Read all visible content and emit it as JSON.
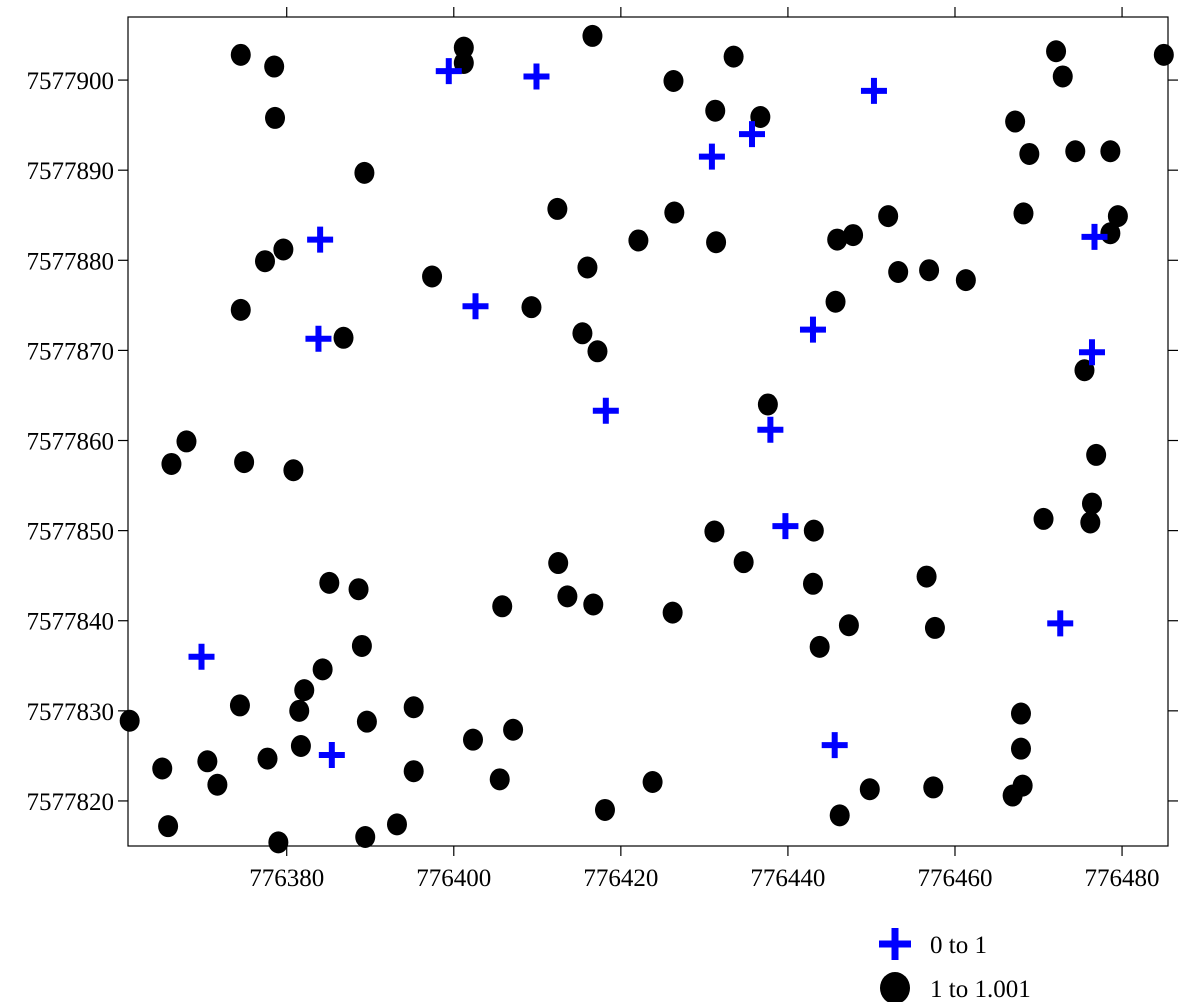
{
  "chart_data": {
    "type": "scatter",
    "title": "",
    "xlabel": "",
    "ylabel": "",
    "xlim": [
      776361.0,
      776485.5
    ],
    "ylim": [
      7577815.0,
      7577907.0
    ],
    "xticks": [
      776380,
      776400,
      776420,
      776440,
      776460,
      776480
    ],
    "yticks": [
      7577820,
      7577830,
      7577840,
      7577850,
      7577860,
      7577870,
      7577880,
      7577890,
      7577900
    ],
    "grid": false,
    "legend_position": "bottom-right",
    "colors": {
      "cross": "#0000ff",
      "circle": "#000000"
    },
    "series": [
      {
        "name": "0 to 1",
        "marker": "cross",
        "points": [
          [
            776399.4,
            7577901.0
          ],
          [
            776409.9,
            7577900.4
          ],
          [
            776450.3,
            7577898.8
          ],
          [
            776435.7,
            7577894.0
          ],
          [
            776430.9,
            7577891.5
          ],
          [
            776384.0,
            7577882.3
          ],
          [
            776476.7,
            7577882.6
          ],
          [
            776402.6,
            7577874.9
          ],
          [
            776443.0,
            7577872.3
          ],
          [
            776383.8,
            7577871.3
          ],
          [
            776476.4,
            7577869.8
          ],
          [
            776418.2,
            7577863.3
          ],
          [
            776437.9,
            7577861.2
          ],
          [
            776439.7,
            7577850.5
          ],
          [
            776472.6,
            7577839.7
          ],
          [
            776369.8,
            7577836.0
          ],
          [
            776385.4,
            7577825.1
          ],
          [
            776445.6,
            7577826.2
          ]
        ]
      },
      {
        "name": "1 to 1.001",
        "marker": "circle",
        "points": [
          [
            776374.5,
            7577902.8
          ],
          [
            776378.5,
            7577901.5
          ],
          [
            776401.2,
            7577903.6
          ],
          [
            776401.2,
            7577901.9
          ],
          [
            776416.6,
            7577904.9
          ],
          [
            776426.3,
            7577899.9
          ],
          [
            776433.5,
            7577902.6
          ],
          [
            776472.1,
            7577903.2
          ],
          [
            776485.0,
            7577902.8
          ],
          [
            776378.6,
            7577895.8
          ],
          [
            776431.3,
            7577896.6
          ],
          [
            776436.7,
            7577895.9
          ],
          [
            776467.2,
            7577895.4
          ],
          [
            776472.9,
            7577900.4
          ],
          [
            776389.3,
            7577889.7
          ],
          [
            776468.9,
            7577891.8
          ],
          [
            776474.4,
            7577892.1
          ],
          [
            776478.6,
            7577892.1
          ],
          [
            776412.4,
            7577885.7
          ],
          [
            776426.4,
            7577885.3
          ],
          [
            776452.0,
            7577884.9
          ],
          [
            776468.2,
            7577885.2
          ],
          [
            776479.5,
            7577884.9
          ],
          [
            776422.1,
            7577882.2
          ],
          [
            776431.4,
            7577882.0
          ],
          [
            776445.9,
            7577882.3
          ],
          [
            776447.8,
            7577882.8
          ],
          [
            776478.6,
            7577883.0
          ],
          [
            776377.4,
            7577879.9
          ],
          [
            776379.6,
            7577881.2
          ],
          [
            776397.4,
            7577878.2
          ],
          [
            776416.0,
            7577879.2
          ],
          [
            776453.2,
            7577878.7
          ],
          [
            776456.9,
            7577878.9
          ],
          [
            776461.3,
            7577877.8
          ],
          [
            776374.5,
            7577874.5
          ],
          [
            776409.3,
            7577874.8
          ],
          [
            776415.4,
            7577871.9
          ],
          [
            776417.2,
            7577869.9
          ],
          [
            776445.7,
            7577875.4
          ],
          [
            776386.8,
            7577871.4
          ],
          [
            776475.5,
            7577867.8
          ],
          [
            776437.6,
            7577864.0
          ],
          [
            776366.2,
            7577857.4
          ],
          [
            776368.0,
            7577859.9
          ],
          [
            776374.9,
            7577857.6
          ],
          [
            776380.8,
            7577856.7
          ],
          [
            776476.9,
            7577858.4
          ],
          [
            776476.4,
            7577853.0
          ],
          [
            776476.2,
            7577850.9
          ],
          [
            776470.6,
            7577851.3
          ],
          [
            776431.2,
            7577849.9
          ],
          [
            776443.1,
            7577850.0
          ],
          [
            776412.5,
            7577846.4
          ],
          [
            776434.7,
            7577846.5
          ],
          [
            776456.6,
            7577844.9
          ],
          [
            776385.1,
            7577844.2
          ],
          [
            776388.6,
            7577843.5
          ],
          [
            776443.0,
            7577844.1
          ],
          [
            776413.6,
            7577842.7
          ],
          [
            776416.7,
            7577841.8
          ],
          [
            776405.8,
            7577841.6
          ],
          [
            776426.2,
            7577840.9
          ],
          [
            776447.3,
            7577839.5
          ],
          [
            776457.6,
            7577839.2
          ],
          [
            776389.0,
            7577837.2
          ],
          [
            776443.8,
            7577837.1
          ],
          [
            776384.3,
            7577834.6
          ],
          [
            776382.1,
            7577832.3
          ],
          [
            776374.4,
            7577830.6
          ],
          [
            776381.5,
            7577830.0
          ],
          [
            776395.2,
            7577830.4
          ],
          [
            776467.9,
            7577829.7
          ],
          [
            776361.2,
            7577828.9
          ],
          [
            776389.6,
            7577828.8
          ],
          [
            776407.1,
            7577827.9
          ],
          [
            776402.3,
            7577826.8
          ],
          [
            776381.7,
            7577826.1
          ],
          [
            776467.9,
            7577825.8
          ],
          [
            776365.1,
            7577823.6
          ],
          [
            776370.5,
            7577824.4
          ],
          [
            776377.7,
            7577824.7
          ],
          [
            776395.2,
            7577823.3
          ],
          [
            776371.7,
            7577821.8
          ],
          [
            776405.5,
            7577822.4
          ],
          [
            776423.8,
            7577822.1
          ],
          [
            776449.8,
            7577821.3
          ],
          [
            776457.4,
            7577821.5
          ],
          [
            776468.1,
            7577821.7
          ],
          [
            776466.9,
            7577820.6
          ],
          [
            776365.8,
            7577817.2
          ],
          [
            776379.0,
            7577815.4
          ],
          [
            776389.4,
            7577816.0
          ],
          [
            776393.2,
            7577817.4
          ],
          [
            776418.1,
            7577819.0
          ],
          [
            776446.2,
            7577818.4
          ]
        ]
      }
    ]
  }
}
